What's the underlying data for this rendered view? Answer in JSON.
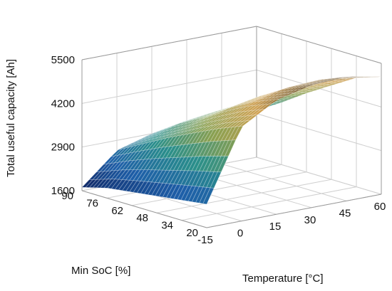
{
  "chart_data": {
    "type": "surface",
    "zlabel": "Total useful capacity [Ah]",
    "xlabel": "Temperature [°C]",
    "ylabel": "Min SoC [%]",
    "x_ticks": [
      "-15",
      "0",
      "15",
      "30",
      "45",
      "60"
    ],
    "y_ticks": [
      "90",
      "76",
      "62",
      "48",
      "34",
      "20"
    ],
    "z_ticks": [
      "1600",
      "2900",
      "4200",
      "5500"
    ],
    "xlim": [
      -15,
      60
    ],
    "ylim": [
      20,
      90
    ],
    "zlim": [
      1600,
      5500
    ],
    "x": [
      -15,
      0,
      15,
      30,
      45,
      60
    ],
    "y": [
      90,
      76,
      62,
      48,
      34,
      20
    ],
    "z": [
      [
        1700,
        2600,
        2900,
        3100,
        3150,
        3000
      ],
      [
        1900,
        3000,
        3400,
        3550,
        3600,
        3450
      ],
      [
        2000,
        3400,
        3800,
        4000,
        4100,
        3950
      ],
      [
        2100,
        3750,
        4300,
        4500,
        4550,
        4400
      ],
      [
        2200,
        4100,
        4700,
        4950,
        5000,
        4850
      ],
      [
        2300,
        4400,
        5000,
        5250,
        5300,
        5100
      ]
    ],
    "colormap": [
      "#0c1a55",
      "#1e5fa8",
      "#2a8f8a",
      "#8aa050",
      "#d0a050",
      "#2a1a08"
    ],
    "grid": true
  }
}
